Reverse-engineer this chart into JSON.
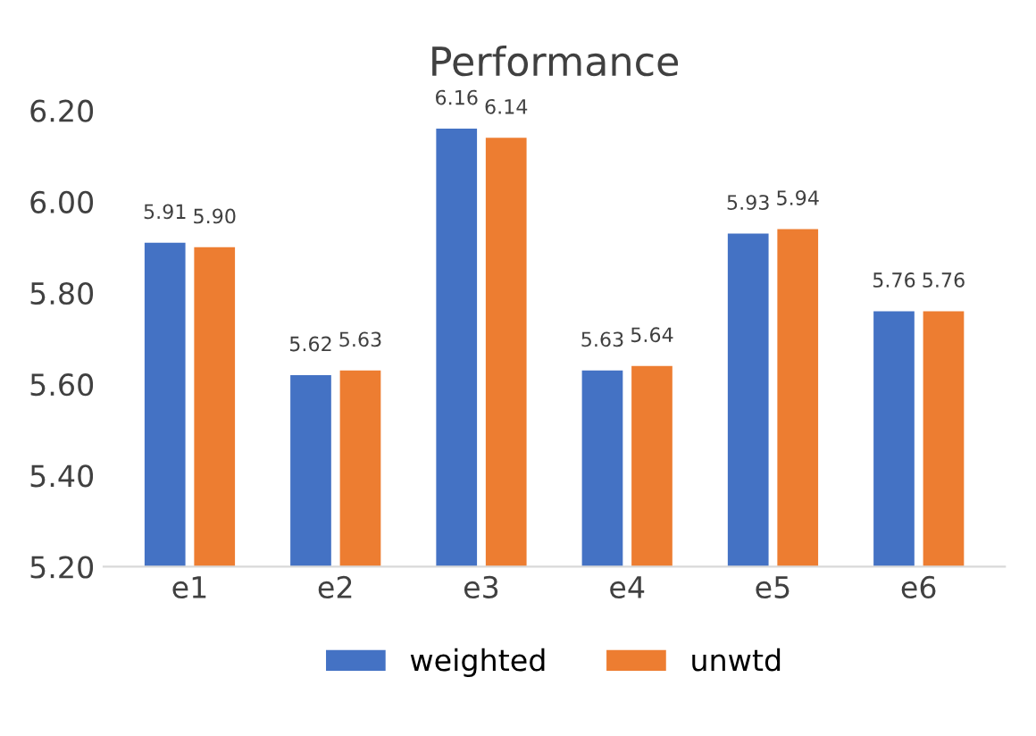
{
  "chart_data": {
    "type": "bar",
    "title": "Performance",
    "categories": [
      "e1",
      "e2",
      "e3",
      "e4",
      "e5",
      "e6"
    ],
    "series": [
      {
        "name": "weighted",
        "color": "#4472c4",
        "values": [
          5.91,
          5.62,
          6.16,
          5.63,
          5.93,
          5.76
        ],
        "value_labels": [
          "5.91",
          "5.62",
          "6.16",
          "5.63",
          "5.93",
          "5.76"
        ]
      },
      {
        "name": "unwtd",
        "color": "#ed7d31",
        "values": [
          5.9,
          5.63,
          6.14,
          5.64,
          5.94,
          5.76
        ],
        "value_labels": [
          "5.90",
          "5.63",
          "6.14",
          "5.64",
          "5.94",
          "5.76"
        ]
      }
    ],
    "ylim": [
      5.2,
      6.2
    ],
    "yticks": [
      {
        "value": 5.2,
        "label": "5.20"
      },
      {
        "value": 5.4,
        "label": "5.40"
      },
      {
        "value": 5.6,
        "label": "5.60"
      },
      {
        "value": 5.8,
        "label": "5.80"
      },
      {
        "value": 6.0,
        "label": "6.00"
      },
      {
        "value": 6.2,
        "label": "6.20"
      }
    ],
    "grid": false,
    "legend": "bottom"
  }
}
